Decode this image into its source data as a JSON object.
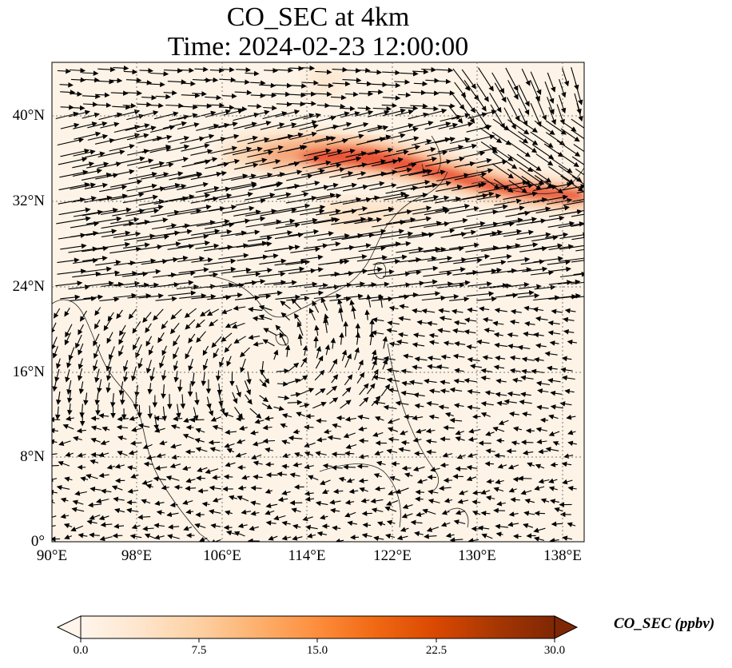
{
  "title_line1": "CO_SEC at 4km",
  "title_line2": "Time: 2024-02-23 12:00:00",
  "lat_ticks": [
    "40°N",
    "32°N",
    "24°N",
    "16°N",
    "8°N",
    "0°"
  ],
  "lon_ticks": [
    "90°E",
    "98°E",
    "106°E",
    "114°E",
    "122°E",
    "130°E",
    "138°E"
  ],
  "colorbar": {
    "label": "CO_SEC (ppbv)",
    "ticks": [
      "0.0",
      "7.5",
      "15.0",
      "22.5",
      "30.0"
    ],
    "vmin": 0,
    "vmax": 30,
    "extend": "both",
    "colormap": [
      "#fff5eb",
      "#fee6ce",
      "#fdd0a2",
      "#fdae6b",
      "#fd8d3c",
      "#f16913",
      "#d94801",
      "#a63603",
      "#7f2704"
    ]
  },
  "map": {
    "lon_range": [
      90,
      140
    ],
    "lat_range": [
      0,
      45
    ],
    "gridlines": "dotted",
    "background_color": "#fdf3e6",
    "plume_color": "#e8452a"
  }
}
